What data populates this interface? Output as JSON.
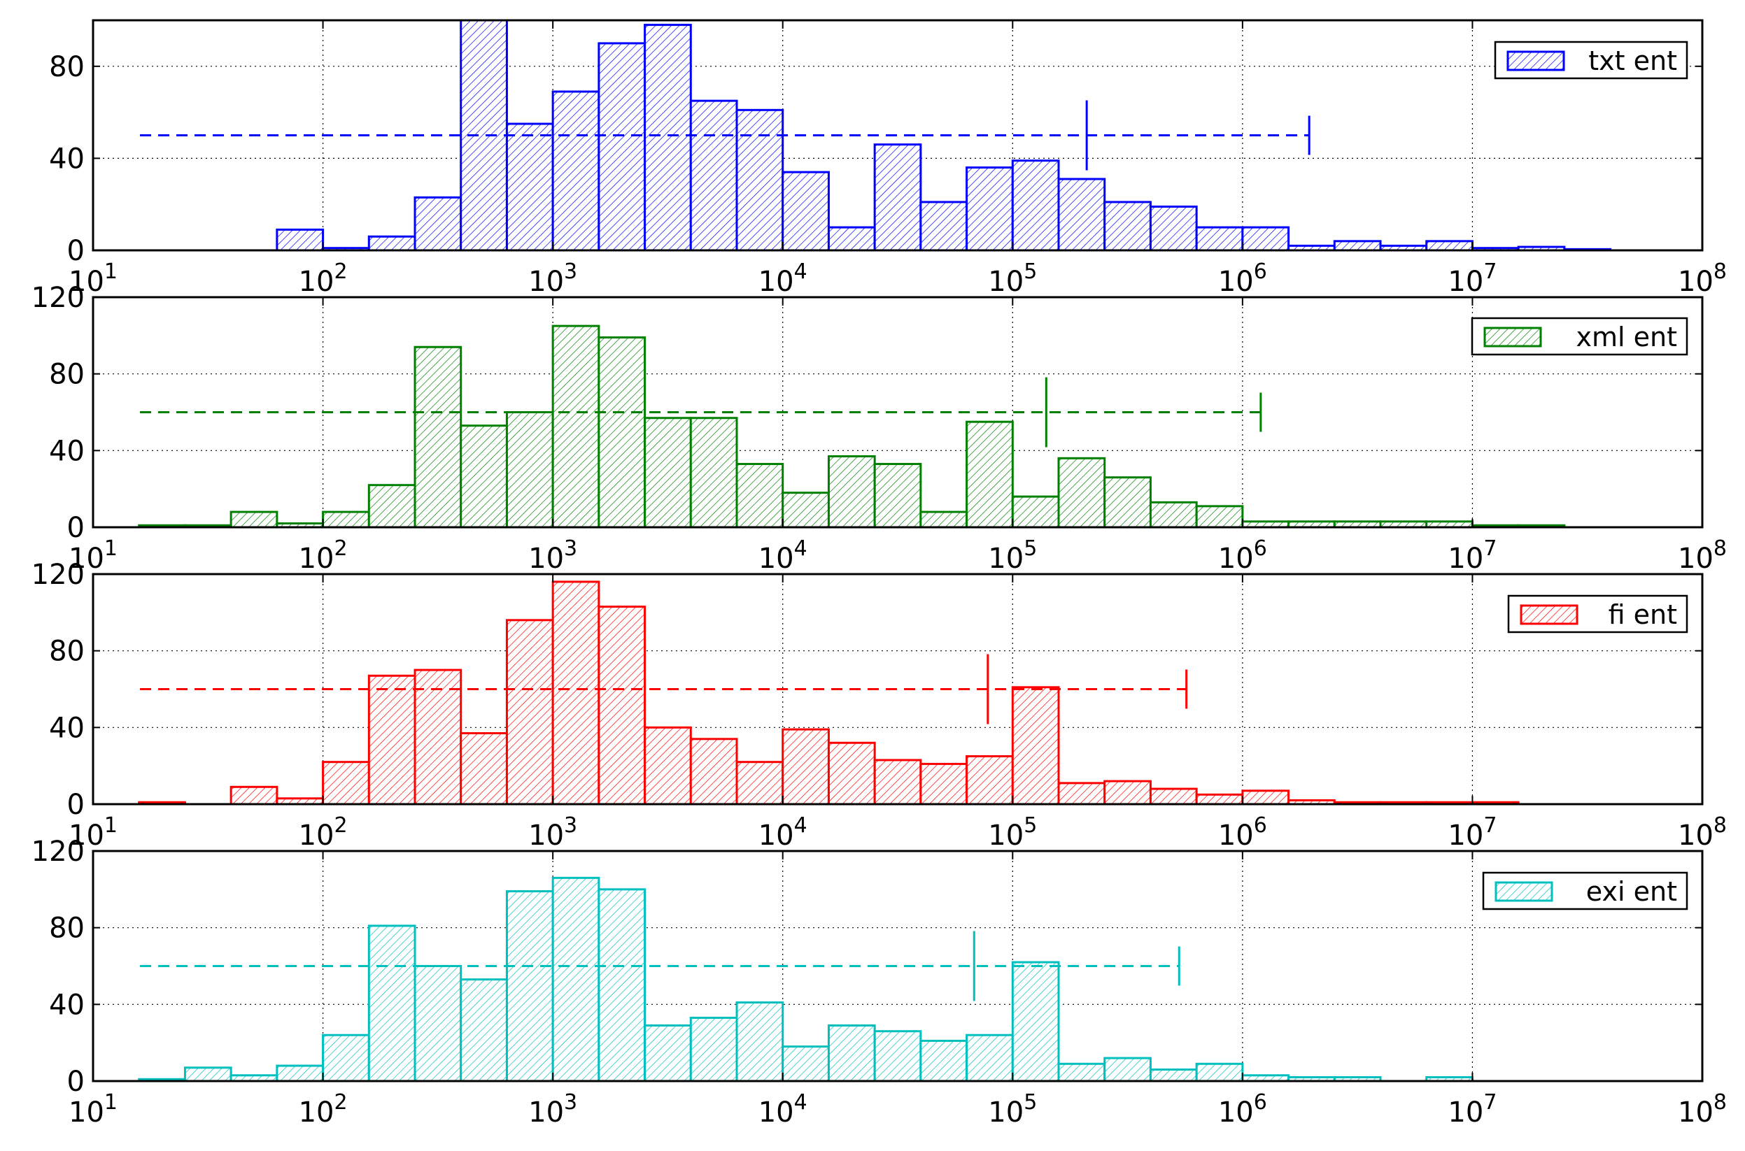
{
  "chart_data": [
    {
      "type": "bar",
      "xscale": "log",
      "xlim": [
        10,
        100000000
      ],
      "ylim": [
        0,
        100
      ],
      "yticks": [
        0,
        40,
        80
      ],
      "xtick_exponents": [
        "1",
        "2",
        "3",
        "4",
        "5",
        "6",
        "7",
        "8"
      ],
      "grid": true,
      "legend_position": "top-right",
      "bin_width_log10": 0.2,
      "series": [
        {
          "name": "txt ent",
          "color": "#0000ff",
          "bins": [
            {
              "x0": 63.1,
              "x1": 100,
              "y": 9
            },
            {
              "x0": 100,
              "x1": 158.5,
              "y": 1
            },
            {
              "x0": 158.5,
              "x1": 251.2,
              "y": 6
            },
            {
              "x0": 251.2,
              "x1": 398.1,
              "y": 23
            },
            {
              "x0": 398.1,
              "x1": 631,
              "y": 100
            },
            {
              "x0": 631,
              "x1": 1000,
              "y": 55
            },
            {
              "x0": 1000,
              "x1": 1585,
              "y": 69
            },
            {
              "x0": 1585,
              "x1": 2512,
              "y": 90
            },
            {
              "x0": 2512,
              "x1": 3981,
              "y": 98
            },
            {
              "x0": 3981,
              "x1": 6310,
              "y": 65
            },
            {
              "x0": 6310,
              "x1": 10000,
              "y": 61
            },
            {
              "x0": 10000,
              "x1": 15850,
              "y": 34
            },
            {
              "x0": 15850,
              "x1": 25120,
              "y": 10
            },
            {
              "x0": 25120,
              "x1": 39810,
              "y": 46
            },
            {
              "x0": 39810,
              "x1": 63100,
              "y": 21
            },
            {
              "x0": 63100,
              "x1": 100000,
              "y": 36
            },
            {
              "x0": 100000,
              "x1": 158500,
              "y": 39
            },
            {
              "x0": 158500,
              "x1": 251200,
              "y": 31
            },
            {
              "x0": 251200,
              "x1": 398100,
              "y": 21
            },
            {
              "x0": 398100,
              "x1": 631000,
              "y": 19
            },
            {
              "x0": 631000,
              "x1": 1000000,
              "y": 10
            },
            {
              "x0": 1000000,
              "x1": 1585000,
              "y": 10
            },
            {
              "x0": 1585000,
              "x1": 2512000,
              "y": 2
            },
            {
              "x0": 2512000,
              "x1": 3981000,
              "y": 4
            },
            {
              "x0": 3981000,
              "x1": 6310000,
              "y": 2
            },
            {
              "x0": 6310000,
              "x1": 10000000,
              "y": 4
            },
            {
              "x0": 10000000,
              "x1": 15850000,
              "y": 1
            },
            {
              "x0": 15850000,
              "x1": 25120000,
              "y": 1.5
            },
            {
              "x0": 25120000,
              "x1": 39810000,
              "y": 0.5
            }
          ],
          "errorbar": {
            "y": 50,
            "x_from": 16,
            "x_center": 210000,
            "x_to": 1950000
          }
        }
      ]
    },
    {
      "type": "bar",
      "xscale": "log",
      "xlim": [
        10,
        100000000
      ],
      "ylim": [
        0,
        120
      ],
      "yticks": [
        0,
        40,
        80,
        120
      ],
      "xtick_exponents": [
        "1",
        "2",
        "3",
        "4",
        "5",
        "6",
        "7",
        "8"
      ],
      "grid": true,
      "legend_position": "top-right",
      "bin_width_log10": 0.2,
      "series": [
        {
          "name": "xml ent",
          "color": "#008000",
          "bins": [
            {
              "x0": 15.85,
              "x1": 25.12,
              "y": 1
            },
            {
              "x0": 25.12,
              "x1": 39.81,
              "y": 1
            },
            {
              "x0": 39.81,
              "x1": 63.1,
              "y": 8
            },
            {
              "x0": 63.1,
              "x1": 100,
              "y": 2
            },
            {
              "x0": 100,
              "x1": 158.5,
              "y": 8
            },
            {
              "x0": 158.5,
              "x1": 251.2,
              "y": 22
            },
            {
              "x0": 251.2,
              "x1": 398.1,
              "y": 94
            },
            {
              "x0": 398.1,
              "x1": 631,
              "y": 53
            },
            {
              "x0": 631,
              "x1": 1000,
              "y": 60
            },
            {
              "x0": 1000,
              "x1": 1585,
              "y": 105
            },
            {
              "x0": 1585,
              "x1": 2512,
              "y": 99
            },
            {
              "x0": 2512,
              "x1": 3981,
              "y": 57
            },
            {
              "x0": 3981,
              "x1": 6310,
              "y": 57
            },
            {
              "x0": 6310,
              "x1": 10000,
              "y": 33
            },
            {
              "x0": 10000,
              "x1": 15850,
              "y": 18
            },
            {
              "x0": 15850,
              "x1": 25120,
              "y": 37
            },
            {
              "x0": 25120,
              "x1": 39810,
              "y": 33
            },
            {
              "x0": 39810,
              "x1": 63100,
              "y": 8
            },
            {
              "x0": 63100,
              "x1": 100000,
              "y": 55
            },
            {
              "x0": 100000,
              "x1": 158500,
              "y": 16
            },
            {
              "x0": 158500,
              "x1": 251200,
              "y": 36
            },
            {
              "x0": 251200,
              "x1": 398100,
              "y": 26
            },
            {
              "x0": 398100,
              "x1": 631000,
              "y": 13
            },
            {
              "x0": 631000,
              "x1": 1000000,
              "y": 11
            },
            {
              "x0": 1000000,
              "x1": 1585000,
              "y": 3
            },
            {
              "x0": 1585000,
              "x1": 2512000,
              "y": 3
            },
            {
              "x0": 2512000,
              "x1": 3981000,
              "y": 3
            },
            {
              "x0": 3981000,
              "x1": 6310000,
              "y": 3
            },
            {
              "x0": 6310000,
              "x1": 10000000,
              "y": 3
            },
            {
              "x0": 10000000,
              "x1": 15850000,
              "y": 1
            },
            {
              "x0": 15850000,
              "x1": 25120000,
              "y": 1
            }
          ],
          "errorbar": {
            "y": 60,
            "x_from": 16,
            "x_center": 140000,
            "x_to": 1200000
          }
        }
      ]
    },
    {
      "type": "bar",
      "xscale": "log",
      "xlim": [
        10,
        100000000
      ],
      "ylim": [
        0,
        120
      ],
      "yticks": [
        0,
        40,
        80,
        120
      ],
      "xtick_exponents": [
        "1",
        "2",
        "3",
        "4",
        "5",
        "6",
        "7",
        "8"
      ],
      "grid": true,
      "legend_position": "top-right",
      "bin_width_log10": 0.2,
      "series": [
        {
          "name": "fi ent",
          "color": "#ff0000",
          "bins": [
            {
              "x0": 15.85,
              "x1": 25.12,
              "y": 1
            },
            {
              "x0": 39.81,
              "x1": 63.1,
              "y": 9
            },
            {
              "x0": 63.1,
              "x1": 100,
              "y": 3
            },
            {
              "x0": 100,
              "x1": 158.5,
              "y": 22
            },
            {
              "x0": 158.5,
              "x1": 251.2,
              "y": 67
            },
            {
              "x0": 251.2,
              "x1": 398.1,
              "y": 70
            },
            {
              "x0": 398.1,
              "x1": 631,
              "y": 37
            },
            {
              "x0": 631,
              "x1": 1000,
              "y": 96
            },
            {
              "x0": 1000,
              "x1": 1585,
              "y": 116
            },
            {
              "x0": 1585,
              "x1": 2512,
              "y": 103
            },
            {
              "x0": 2512,
              "x1": 3981,
              "y": 40
            },
            {
              "x0": 3981,
              "x1": 6310,
              "y": 34
            },
            {
              "x0": 6310,
              "x1": 10000,
              "y": 22
            },
            {
              "x0": 10000,
              "x1": 15850,
              "y": 39
            },
            {
              "x0": 15850,
              "x1": 25120,
              "y": 32
            },
            {
              "x0": 25120,
              "x1": 39810,
              "y": 23
            },
            {
              "x0": 39810,
              "x1": 63100,
              "y": 21
            },
            {
              "x0": 63100,
              "x1": 100000,
              "y": 25
            },
            {
              "x0": 100000,
              "x1": 158500,
              "y": 61
            },
            {
              "x0": 158500,
              "x1": 251200,
              "y": 11
            },
            {
              "x0": 251200,
              "x1": 398100,
              "y": 12
            },
            {
              "x0": 398100,
              "x1": 631000,
              "y": 8
            },
            {
              "x0": 631000,
              "x1": 1000000,
              "y": 5
            },
            {
              "x0": 1000000,
              "x1": 1585000,
              "y": 7
            },
            {
              "x0": 1585000,
              "x1": 2512000,
              "y": 2
            },
            {
              "x0": 2512000,
              "x1": 3981000,
              "y": 1
            },
            {
              "x0": 3981000,
              "x1": 6310000,
              "y": 1
            },
            {
              "x0": 6310000,
              "x1": 10000000,
              "y": 1
            },
            {
              "x0": 10000000,
              "x1": 15850000,
              "y": 1
            }
          ],
          "errorbar": {
            "y": 60,
            "x_from": 16,
            "x_center": 78000,
            "x_to": 570000
          }
        }
      ]
    },
    {
      "type": "bar",
      "xscale": "log",
      "xlim": [
        10,
        100000000
      ],
      "ylim": [
        0,
        120
      ],
      "yticks": [
        0,
        40,
        80,
        120
      ],
      "xtick_exponents": [
        "1",
        "2",
        "3",
        "4",
        "5",
        "6",
        "7",
        "8"
      ],
      "grid": true,
      "legend_position": "top-right",
      "bin_width_log10": 0.2,
      "series": [
        {
          "name": "exi ent",
          "color": "#00bfbf",
          "bins": [
            {
              "x0": 15.85,
              "x1": 25.12,
              "y": 1
            },
            {
              "x0": 25.12,
              "x1": 39.81,
              "y": 7
            },
            {
              "x0": 39.81,
              "x1": 63.1,
              "y": 3
            },
            {
              "x0": 63.1,
              "x1": 100,
              "y": 8
            },
            {
              "x0": 100,
              "x1": 158.5,
              "y": 24
            },
            {
              "x0": 158.5,
              "x1": 251.2,
              "y": 81
            },
            {
              "x0": 251.2,
              "x1": 398.1,
              "y": 60
            },
            {
              "x0": 398.1,
              "x1": 631,
              "y": 53
            },
            {
              "x0": 631,
              "x1": 1000,
              "y": 99
            },
            {
              "x0": 1000,
              "x1": 1585,
              "y": 106
            },
            {
              "x0": 1585,
              "x1": 2512,
              "y": 100
            },
            {
              "x0": 2512,
              "x1": 3981,
              "y": 29
            },
            {
              "x0": 3981,
              "x1": 6310,
              "y": 33
            },
            {
              "x0": 6310,
              "x1": 10000,
              "y": 41
            },
            {
              "x0": 10000,
              "x1": 15850,
              "y": 18
            },
            {
              "x0": 15850,
              "x1": 25120,
              "y": 29
            },
            {
              "x0": 25120,
              "x1": 39810,
              "y": 26
            },
            {
              "x0": 39810,
              "x1": 63100,
              "y": 21
            },
            {
              "x0": 63100,
              "x1": 100000,
              "y": 24
            },
            {
              "x0": 100000,
              "x1": 158500,
              "y": 62
            },
            {
              "x0": 158500,
              "x1": 251200,
              "y": 9
            },
            {
              "x0": 251200,
              "x1": 398100,
              "y": 12
            },
            {
              "x0": 398100,
              "x1": 631000,
              "y": 6
            },
            {
              "x0": 631000,
              "x1": 1000000,
              "y": 9
            },
            {
              "x0": 1000000,
              "x1": 1585000,
              "y": 3
            },
            {
              "x0": 1585000,
              "x1": 2512000,
              "y": 2
            },
            {
              "x0": 2512000,
              "x1": 3981000,
              "y": 2
            },
            {
              "x0": 6310000,
              "x1": 10000000,
              "y": 2
            }
          ],
          "errorbar": {
            "y": 60,
            "x_from": 16,
            "x_center": 68000,
            "x_to": 530000
          }
        }
      ]
    }
  ]
}
